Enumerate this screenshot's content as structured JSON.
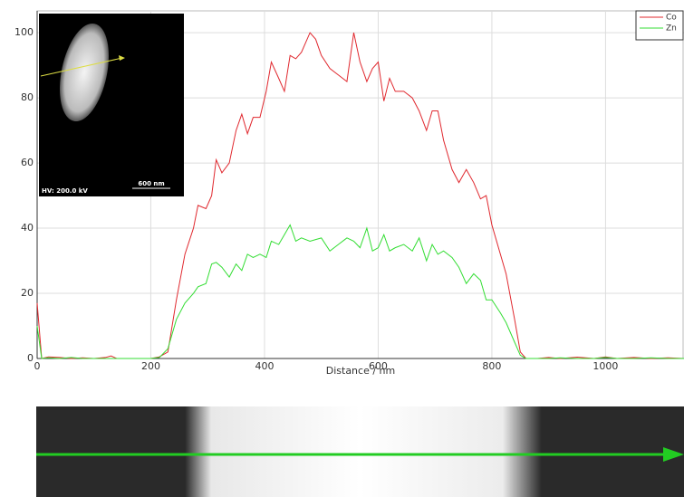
{
  "chart_data": {
    "type": "line",
    "x_label": "Distance / nm",
    "x": [
      0,
      8,
      20,
      40,
      60,
      80,
      100,
      120,
      130,
      140,
      160,
      180,
      200,
      215,
      230,
      245,
      260,
      275,
      283,
      297,
      307,
      315,
      325,
      338,
      350,
      360,
      370,
      380,
      392,
      403,
      412,
      425,
      435,
      445,
      455,
      465,
      480,
      490,
      500,
      515,
      530,
      545,
      557,
      568,
      580,
      590,
      600,
      610,
      620,
      630,
      645,
      660,
      672,
      685,
      695,
      705,
      715,
      730,
      742,
      755,
      768,
      780,
      790,
      800,
      815,
      825,
      840,
      850,
      860,
      880,
      900,
      920,
      950,
      980,
      1000,
      1020,
      1050,
      1080,
      1110,
      1138
    ],
    "series": [
      {
        "name": "Co",
        "color": "#e0282e",
        "values": [
          17,
          0,
          0.5,
          0.3,
          0,
          0.2,
          0,
          0.3,
          0.8,
          0,
          0,
          0,
          0,
          0.5,
          2,
          18,
          32,
          40,
          47,
          46,
          50,
          61,
          57,
          60,
          70,
          75,
          69,
          74,
          74,
          82,
          91,
          86,
          82,
          93,
          92,
          94,
          100,
          98,
          93,
          89,
          87,
          85,
          100,
          91,
          85,
          89,
          91,
          79,
          86,
          82,
          82,
          80,
          76,
          70,
          76,
          76,
          67,
          58,
          54,
          58,
          54,
          49,
          50,
          41,
          32,
          26,
          12,
          2,
          0,
          0,
          0.3,
          0,
          0.4,
          0,
          0.5,
          0,
          0.3,
          0,
          0.2,
          0
        ]
      },
      {
        "name": "Zn",
        "color": "#33dd33",
        "values": [
          10,
          0,
          0.2,
          0,
          0.3,
          0,
          0,
          0,
          0,
          0,
          0,
          0,
          0,
          0.3,
          3,
          12,
          17,
          20,
          22,
          23,
          29,
          29.5,
          28,
          25,
          29,
          27,
          32,
          31,
          32,
          31,
          36,
          35,
          38,
          41,
          36,
          37,
          36,
          36.5,
          37,
          33,
          35,
          37,
          36,
          34,
          40,
          33,
          34,
          38,
          33,
          34,
          35,
          33,
          37,
          30,
          35,
          32,
          33,
          31,
          28,
          23,
          26,
          24,
          18,
          18,
          14,
          11,
          5,
          1,
          0,
          0,
          0,
          0.2,
          0,
          0,
          0.3,
          0,
          0,
          0.2,
          0,
          0
        ]
      }
    ],
    "xlim": [
      0,
      1138
    ],
    "ylim": [
      0,
      106.7
    ],
    "xticks": [
      0,
      200,
      400,
      600,
      800,
      1000
    ],
    "yticks": [
      0,
      20,
      40,
      60,
      80,
      100
    ],
    "grid": true,
    "legend": "upper right",
    "inset_labels": [
      "HV: 200.0 kV",
      "600 nm"
    ]
  }
}
